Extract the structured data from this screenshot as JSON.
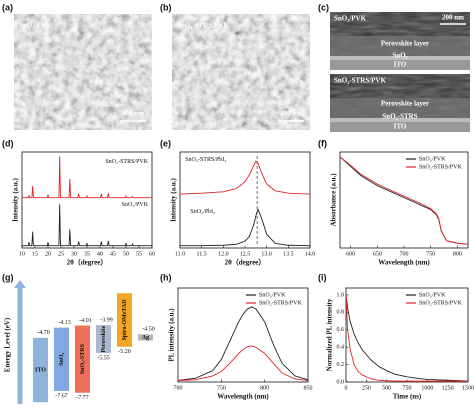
{
  "sem": [
    {
      "label": "(a)",
      "title": "SnO₂/PVK",
      "scale": "400 nm"
    },
    {
      "label": "(b)",
      "title": "SnO₂-STRS/PVK",
      "scale": "400 nm"
    }
  ],
  "cross_section": {
    "label": "(c)",
    "top": {
      "title": "SnO₂/PVK",
      "scale": "200 nm",
      "layers": [
        "Perovskite layer",
        "SnO₂",
        "ITO"
      ]
    },
    "bottom": {
      "title": "SnO₂-STRS/PVK",
      "layers": [
        "Perovskite layer",
        "SnO₂-STRS",
        "ITO"
      ]
    }
  },
  "chart_data": [
    {
      "type": "line",
      "label": "(d)",
      "xlabel": "2θ（degree）",
      "ylabel": "Intensity (a.u.)",
      "x": [
        10,
        12.4,
        12.7,
        13.0,
        13.8,
        14.1,
        14.4,
        19.7,
        20.0,
        20.3,
        24.2,
        24.5,
        24.8,
        28.1,
        28.4,
        28.7,
        31.5,
        31.8,
        32.1,
        34.7,
        35.0,
        35.3,
        40.2,
        40.5,
        40.8,
        42.9,
        43.2,
        43.5,
        49.7,
        50.0,
        50.3,
        52.2,
        52.5,
        52.8,
        60
      ],
      "series": [
        {
          "name": "SnO₂-STRS/PVK",
          "color": "#e0262b",
          "values": [
            1.1,
            1.1,
            1.15,
            1.1,
            1.1,
            1.35,
            1.1,
            1.1,
            1.16,
            1.1,
            1.1,
            2.0,
            1.1,
            1.1,
            1.5,
            1.1,
            1.1,
            1.18,
            1.1,
            1.1,
            1.14,
            1.1,
            1.1,
            1.18,
            1.1,
            1.1,
            1.2,
            1.1,
            1.1,
            1.14,
            1.1,
            1.1,
            1.13,
            1.1,
            1.1
          ]
        },
        {
          "name": "SnO₂/PVK",
          "color": "#222222",
          "values": [
            0.05,
            0.05,
            0.12,
            0.05,
            0.05,
            0.35,
            0.05,
            0.05,
            0.12,
            0.05,
            0.05,
            0.95,
            0.05,
            0.05,
            0.4,
            0.05,
            0.05,
            0.14,
            0.05,
            0.05,
            0.1,
            0.05,
            0.05,
            0.14,
            0.05,
            0.05,
            0.15,
            0.05,
            0.05,
            0.1,
            0.05,
            0.05,
            0.09,
            0.05,
            0.05
          ]
        }
      ],
      "xlim": [
        10,
        60
      ],
      "xticks": [
        10,
        15,
        20,
        25,
        30,
        35,
        40,
        45,
        50,
        55,
        60
      ],
      "ylim": [
        0,
        2.1
      ]
    },
    {
      "type": "line",
      "label": "(e)",
      "xlabel": "2θ（degree）",
      "ylabel": "Intensity (a.u.)",
      "x": [
        11,
        11.5,
        12,
        12.3,
        12.5,
        12.6,
        12.7,
        12.75,
        12.8,
        12.9,
        13.0,
        13.2,
        13.5,
        14
      ],
      "series": [
        {
          "name": "SnO₂-STRS/PbI₂",
          "color": "#e0262b",
          "values": [
            1.18,
            1.2,
            1.23,
            1.3,
            1.45,
            1.6,
            1.8,
            1.9,
            1.85,
            1.6,
            1.4,
            1.25,
            1.2,
            1.18
          ]
        },
        {
          "name": "SnO₂/PbI₂",
          "color": "#222222",
          "values": [
            0.05,
            0.05,
            0.06,
            0.08,
            0.15,
            0.25,
            0.5,
            0.7,
            0.85,
            0.6,
            0.3,
            0.1,
            0.06,
            0.05
          ]
        }
      ],
      "marker_x": 12.78,
      "xlim": [
        11,
        14
      ],
      "xticks": [
        {
          "value": 11,
          "label": "11.0"
        },
        11.5,
        {
          "value": 12,
          "label": "12.0"
        },
        12.5,
        {
          "value": 13,
          "label": "13.0"
        },
        13.5,
        {
          "value": 14,
          "label": "14.0"
        }
      ],
      "ylim": [
        0,
        2.1
      ]
    },
    {
      "type": "line",
      "label": "(f)",
      "xlabel": "Wavelength (nm)",
      "ylabel": "Absorbance (a.u.)",
      "legend": "upper right",
      "x": [
        580,
        600,
        620,
        650,
        680,
        700,
        720,
        740,
        750,
        760,
        765,
        770,
        780,
        800,
        820
      ],
      "series": [
        {
          "name": "SnO₂/PVK",
          "color": "#222222",
          "values": [
            1.9,
            1.7,
            1.5,
            1.3,
            1.15,
            1.05,
            0.95,
            0.85,
            0.8,
            0.7,
            0.6,
            0.35,
            0.15,
            0.1,
            0.08
          ]
        },
        {
          "name": "SnO₂-STRS/PVK",
          "color": "#e0262b",
          "values": [
            1.9,
            1.72,
            1.53,
            1.33,
            1.18,
            1.08,
            0.98,
            0.88,
            0.82,
            0.72,
            0.62,
            0.36,
            0.15,
            0.1,
            0.08
          ]
        }
      ],
      "xlim": [
        580,
        820
      ],
      "xticks": [
        600,
        650,
        700,
        750,
        800
      ],
      "ylim": [
        0,
        2
      ]
    },
    {
      "type": "line",
      "label": "(h)",
      "xlabel": "Wavelength (nm)",
      "ylabel": "PL intensity (a.u.)",
      "legend": "upper right",
      "x": [
        700,
        720,
        740,
        750,
        760,
        770,
        775,
        780,
        785,
        790,
        800,
        810,
        820,
        835,
        850
      ],
      "series": [
        {
          "name": "SnO₂/PVK",
          "color": "#222222",
          "values": [
            0.02,
            0.05,
            0.15,
            0.3,
            0.55,
            0.8,
            0.9,
            0.97,
            1.0,
            0.97,
            0.8,
            0.5,
            0.25,
            0.08,
            0.03
          ]
        },
        {
          "name": "SnO₂-STRS/PVK",
          "color": "#e0262b",
          "values": [
            0.02,
            0.03,
            0.08,
            0.14,
            0.25,
            0.38,
            0.43,
            0.47,
            0.48,
            0.46,
            0.38,
            0.25,
            0.12,
            0.04,
            0.02
          ]
        }
      ],
      "xlim": [
        700,
        850
      ],
      "xticks": [
        700,
        750,
        800,
        850
      ],
      "ylim": [
        0,
        1.25
      ]
    },
    {
      "type": "line",
      "label": "(i)",
      "xlabel": "Time (ns)",
      "ylabel": "Normalized PL intensity",
      "legend": "upper right",
      "x": [
        0,
        20,
        50,
        100,
        150,
        200,
        300,
        400,
        500,
        600,
        750,
        900,
        1000,
        1250,
        1500
      ],
      "series": [
        {
          "name": "SnO₂/PVK",
          "color": "#222222",
          "values": [
            1.0,
            0.85,
            0.7,
            0.55,
            0.45,
            0.37,
            0.26,
            0.18,
            0.13,
            0.09,
            0.06,
            0.04,
            0.03,
            0.02,
            0.01
          ]
        },
        {
          "name": "SnO₂-STRS/PVK",
          "color": "#e0262b",
          "values": [
            1.0,
            0.6,
            0.38,
            0.2,
            0.12,
            0.08,
            0.04,
            0.02,
            0.015,
            0.01,
            0.01,
            0.01,
            0.01,
            0.01,
            0.01
          ]
        }
      ],
      "xlim": [
        0,
        1500
      ],
      "xticks": [
        0,
        250,
        500,
        750,
        1000,
        1250,
        1500
      ],
      "ylim": [
        0,
        1.08
      ],
      "yticks": [
        {
          "value": 0,
          "label": "0.0"
        },
        0.2,
        0.4,
        0.6,
        0.8,
        {
          "value": 1,
          "label": "1.0"
        }
      ]
    }
  ],
  "energy_diagram": {
    "label": "(g)",
    "ylabel": "Energy Level (eV)",
    "ylim": [
      -8.4,
      -1.8
    ],
    "levels": [
      {
        "name": "ITO",
        "top": -4.7,
        "bottom": -8.3,
        "top_label": "-4.70",
        "color": "#8fb4dc"
      },
      {
        "name": "SnO₂",
        "top": -4.13,
        "bottom": -7.67,
        "top_label": "-4.13",
        "bottom_label": "-7.67",
        "color": "#7fa9e0"
      },
      {
        "name": "SnO₂-STRS",
        "top": -4.01,
        "bottom": -7.77,
        "top_label": "-4.01",
        "bottom_label": "-7.77",
        "color": "#f0715a"
      },
      {
        "name": "Perovskite",
        "top": -3.99,
        "bottom": -5.55,
        "top_label": "-3.99",
        "bottom_label": "-5.55",
        "color": "#a9b8cc"
      },
      {
        "name": "Spiro-OMeTAD",
        "top": -2.2,
        "bottom": -5.2,
        "bottom_label": "-5.20",
        "color": "#f5a623"
      },
      {
        "name": "Ag",
        "top": -4.5,
        "bottom": -4.85,
        "top_label": "-4.50",
        "color": "#b5b5b5"
      }
    ]
  }
}
